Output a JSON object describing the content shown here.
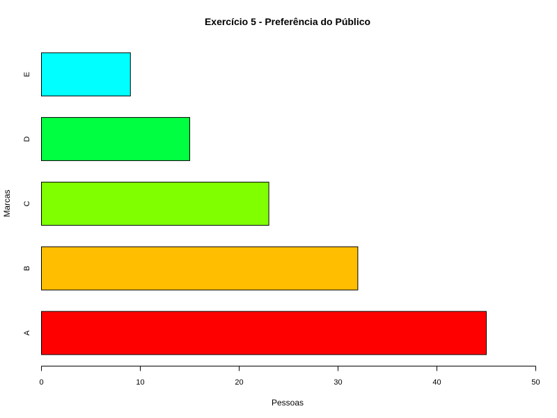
{
  "chart_data": {
    "type": "bar",
    "orientation": "horizontal",
    "title": "Exercício 5 - Preferência do Público",
    "xlabel": "Pessoas",
    "ylabel": "Marcas",
    "categories": [
      "A",
      "B",
      "C",
      "D",
      "E"
    ],
    "values": [
      45,
      32,
      23,
      15,
      9
    ],
    "colors": [
      "#ff0000",
      "#ffbf00",
      "#80ff00",
      "#00ff40",
      "#00ffff"
    ],
    "xlim": [
      0,
      50
    ],
    "xticks": [
      0,
      10,
      20,
      30,
      40,
      50
    ],
    "xtick_labels": [
      "0",
      "10",
      "20",
      "30",
      "40",
      "50"
    ],
    "grid": false,
    "legend": "none"
  }
}
